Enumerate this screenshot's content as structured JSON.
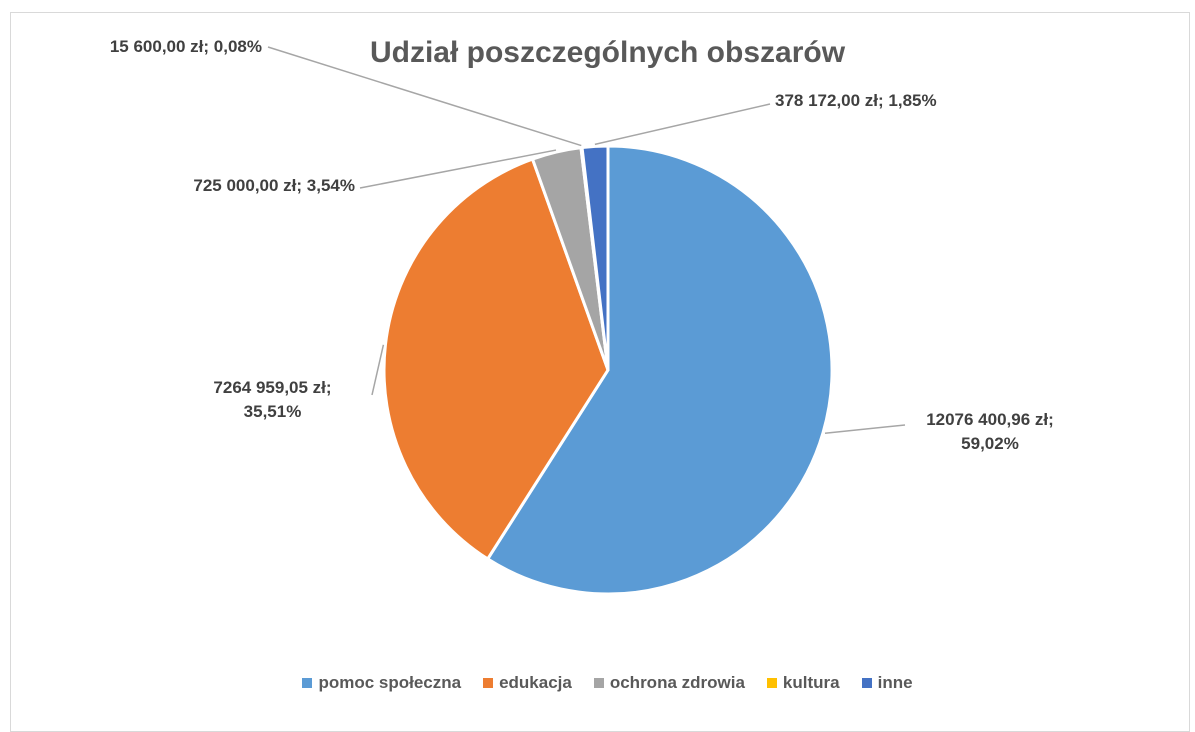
{
  "chart_data": {
    "type": "pie",
    "title": "Udział poszczególnych obszarów",
    "categories": [
      "pomoc społeczna",
      "edukacja",
      "ochrona zdrowia",
      "kultura",
      "inne"
    ],
    "values": [
      12076400.96,
      7264959.05,
      725000,
      15600,
      378172
    ],
    "value_labels": [
      "12076 400,96 zł; 59,02%",
      "7264 959,05 zł; 35,51%",
      "725 000,00 zł; 3,54%",
      "15 600,00 zł; 0,08%",
      "378 172,00 zł; 1,85%"
    ],
    "colors": [
      "#5b9bd5",
      "#ed7d31",
      "#a5a5a5",
      "#ffc000",
      "#4472c4"
    ],
    "legend": "bottom"
  }
}
